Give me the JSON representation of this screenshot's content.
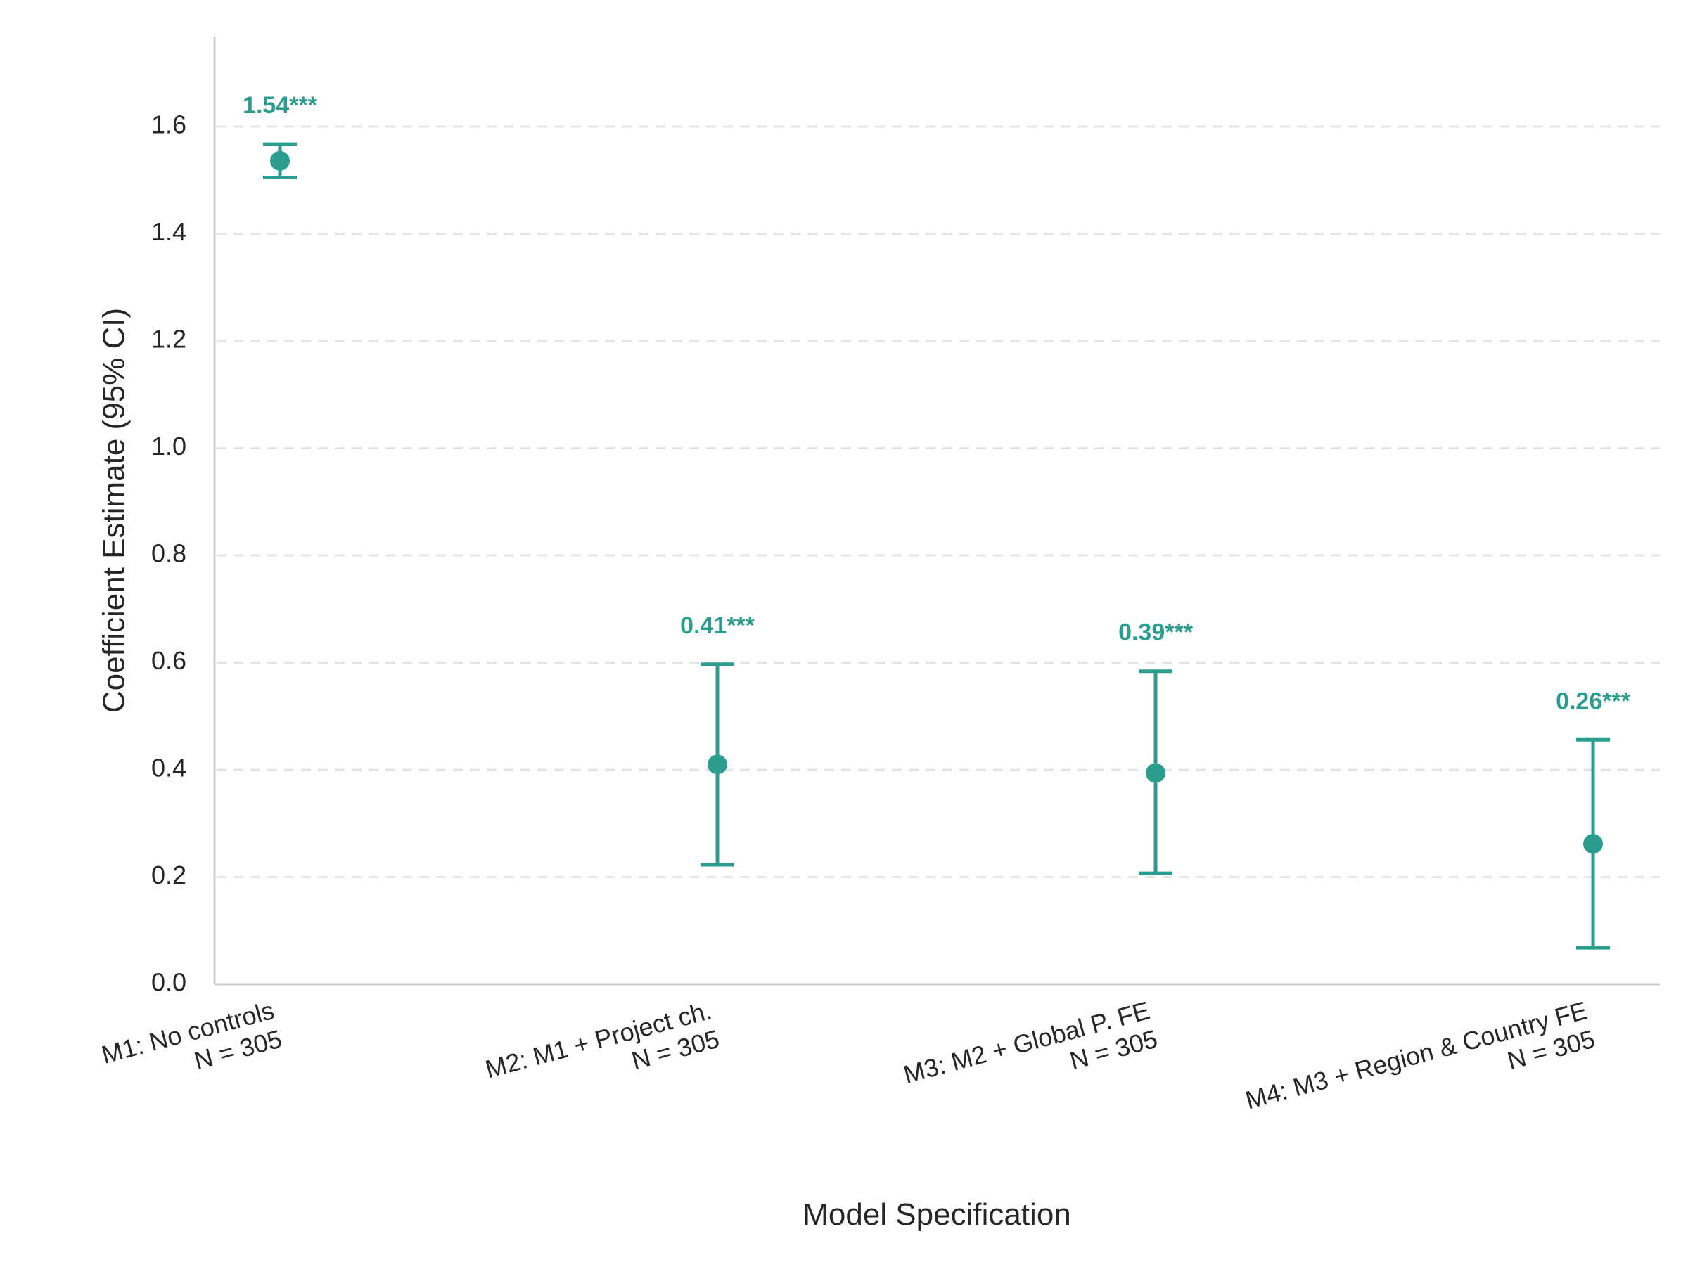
{
  "chart_data": {
    "type": "scatter",
    "subtype": "coefficient-plot-with-error-bars",
    "title": "",
    "xlabel": "Model Specification",
    "ylabel": "Coefficient Estimate (95% CI)",
    "ylim": [
      0.0,
      1.77
    ],
    "yticks": [
      0.0,
      0.2,
      0.4,
      0.6,
      0.8,
      1.0,
      1.2,
      1.4,
      1.6
    ],
    "ytick_labels": [
      "0.0",
      "0.2",
      "0.4",
      "0.6",
      "0.8",
      "1.0",
      "1.2",
      "1.4",
      "1.6"
    ],
    "grid": "y-dashed",
    "color": "#2a9d8f",
    "categories": [
      {
        "line1": "M1: No controls",
        "line2": "N = 305"
      },
      {
        "line1": "M2: M1 + Project ch.",
        "line2": "N = 305"
      },
      {
        "line1": "M3: M2 + Global P. FE",
        "line2": "N = 305"
      },
      {
        "line1": "M4: M3 + Region & Country FE",
        "line2": "N = 305"
      }
    ],
    "estimates": [
      1.536,
      0.41,
      0.394,
      0.262
    ],
    "ci_lower": [
      1.505,
      0.223,
      0.207,
      0.068
    ],
    "ci_upper": [
      1.567,
      0.597,
      0.584,
      0.456
    ],
    "labels": [
      "1.54***",
      "0.41***",
      "0.39***",
      "0.26***"
    ]
  }
}
